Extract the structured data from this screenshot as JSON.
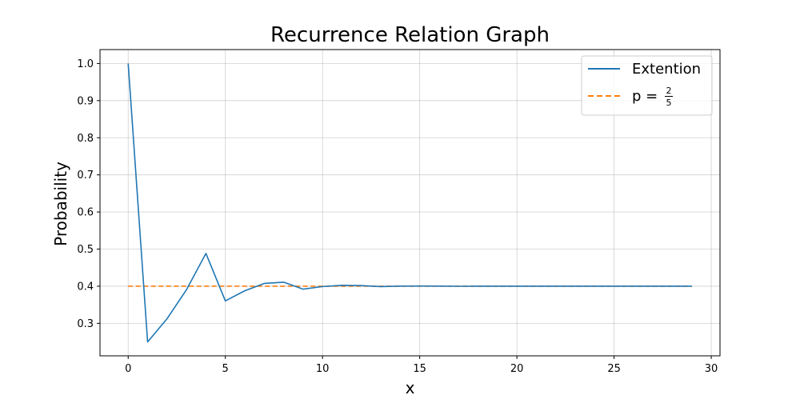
{
  "chart_data": {
    "type": "line",
    "title": "Recurrence Relation Graph",
    "xlabel": "x",
    "ylabel": "Probability",
    "xlim": [
      -1.45,
      30.45
    ],
    "ylim": [
      0.2125,
      1.0375
    ],
    "xticks": [
      0,
      5,
      10,
      15,
      20,
      25,
      30
    ],
    "yticks": [
      0.3,
      0.4,
      0.5,
      0.6,
      0.7,
      0.8,
      0.9,
      1.0
    ],
    "grid": true,
    "legend_position": "top-right",
    "series": [
      {
        "name": "Extention",
        "style": "solid",
        "color": "#1f77b4",
        "x": [
          0,
          1,
          2,
          3,
          4,
          5,
          6,
          7,
          8,
          9,
          10,
          11,
          12,
          13,
          14,
          15,
          16,
          17,
          18,
          19,
          20,
          21,
          22,
          23,
          24,
          25,
          26,
          27,
          28,
          29
        ],
        "y": [
          1.0,
          0.25,
          0.3125,
          0.3906,
          0.4883,
          0.3604,
          0.3878,
          0.4075,
          0.4109,
          0.3921,
          0.3991,
          0.4024,
          0.4017,
          0.399,
          0.4003,
          0.4005,
          0.4002,
          0.3999,
          0.4001,
          0.4001,
          0.4,
          0.4,
          0.4,
          0.4,
          0.4,
          0.4,
          0.4,
          0.4,
          0.4,
          0.4
        ]
      },
      {
        "name": "p = 2/5",
        "legend_label": {
          "prefix": "p = ",
          "numerator": "2",
          "denominator": "5"
        },
        "style": "dashed",
        "color": "#ff7f0e",
        "x": [
          0,
          29
        ],
        "y": [
          0.4,
          0.4
        ]
      }
    ]
  }
}
